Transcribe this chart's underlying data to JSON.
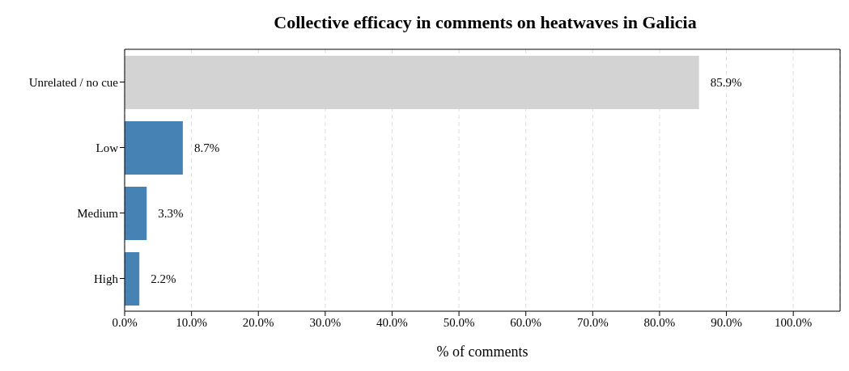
{
  "chart_data": {
    "type": "bar",
    "orientation": "horizontal",
    "title": "Collective efficacy in comments on heatwaves in Galicia",
    "xlabel": "% of comments",
    "categories": [
      "Unrelated / no cue",
      "Low",
      "Medium",
      "High"
    ],
    "values": [
      85.9,
      8.7,
      3.3,
      2.2
    ],
    "colors": [
      "#d3d3d3",
      "#4682b4",
      "#4682b4",
      "#4682b4"
    ],
    "value_labels": [
      "85.9%",
      "8.7%",
      "3.3%",
      "2.2%"
    ],
    "xlim": [
      0,
      107
    ],
    "xticks": [
      {
        "value": 0,
        "label": "0.0%"
      },
      {
        "value": 10,
        "label": "10.0%"
      },
      {
        "value": 20,
        "label": "20.0%"
      },
      {
        "value": 30,
        "label": "30.0%"
      },
      {
        "value": 40,
        "label": "40.0%"
      },
      {
        "value": 50,
        "label": "50.0%"
      },
      {
        "value": 60,
        "label": "60.0%"
      },
      {
        "value": 70,
        "label": "70.0%"
      },
      {
        "value": 80,
        "label": "80.0%"
      },
      {
        "value": 90,
        "label": "90.0%"
      },
      {
        "value": 100,
        "label": "100.0%"
      }
    ],
    "grid": "x",
    "line_style": "dashed",
    "legend": false
  }
}
